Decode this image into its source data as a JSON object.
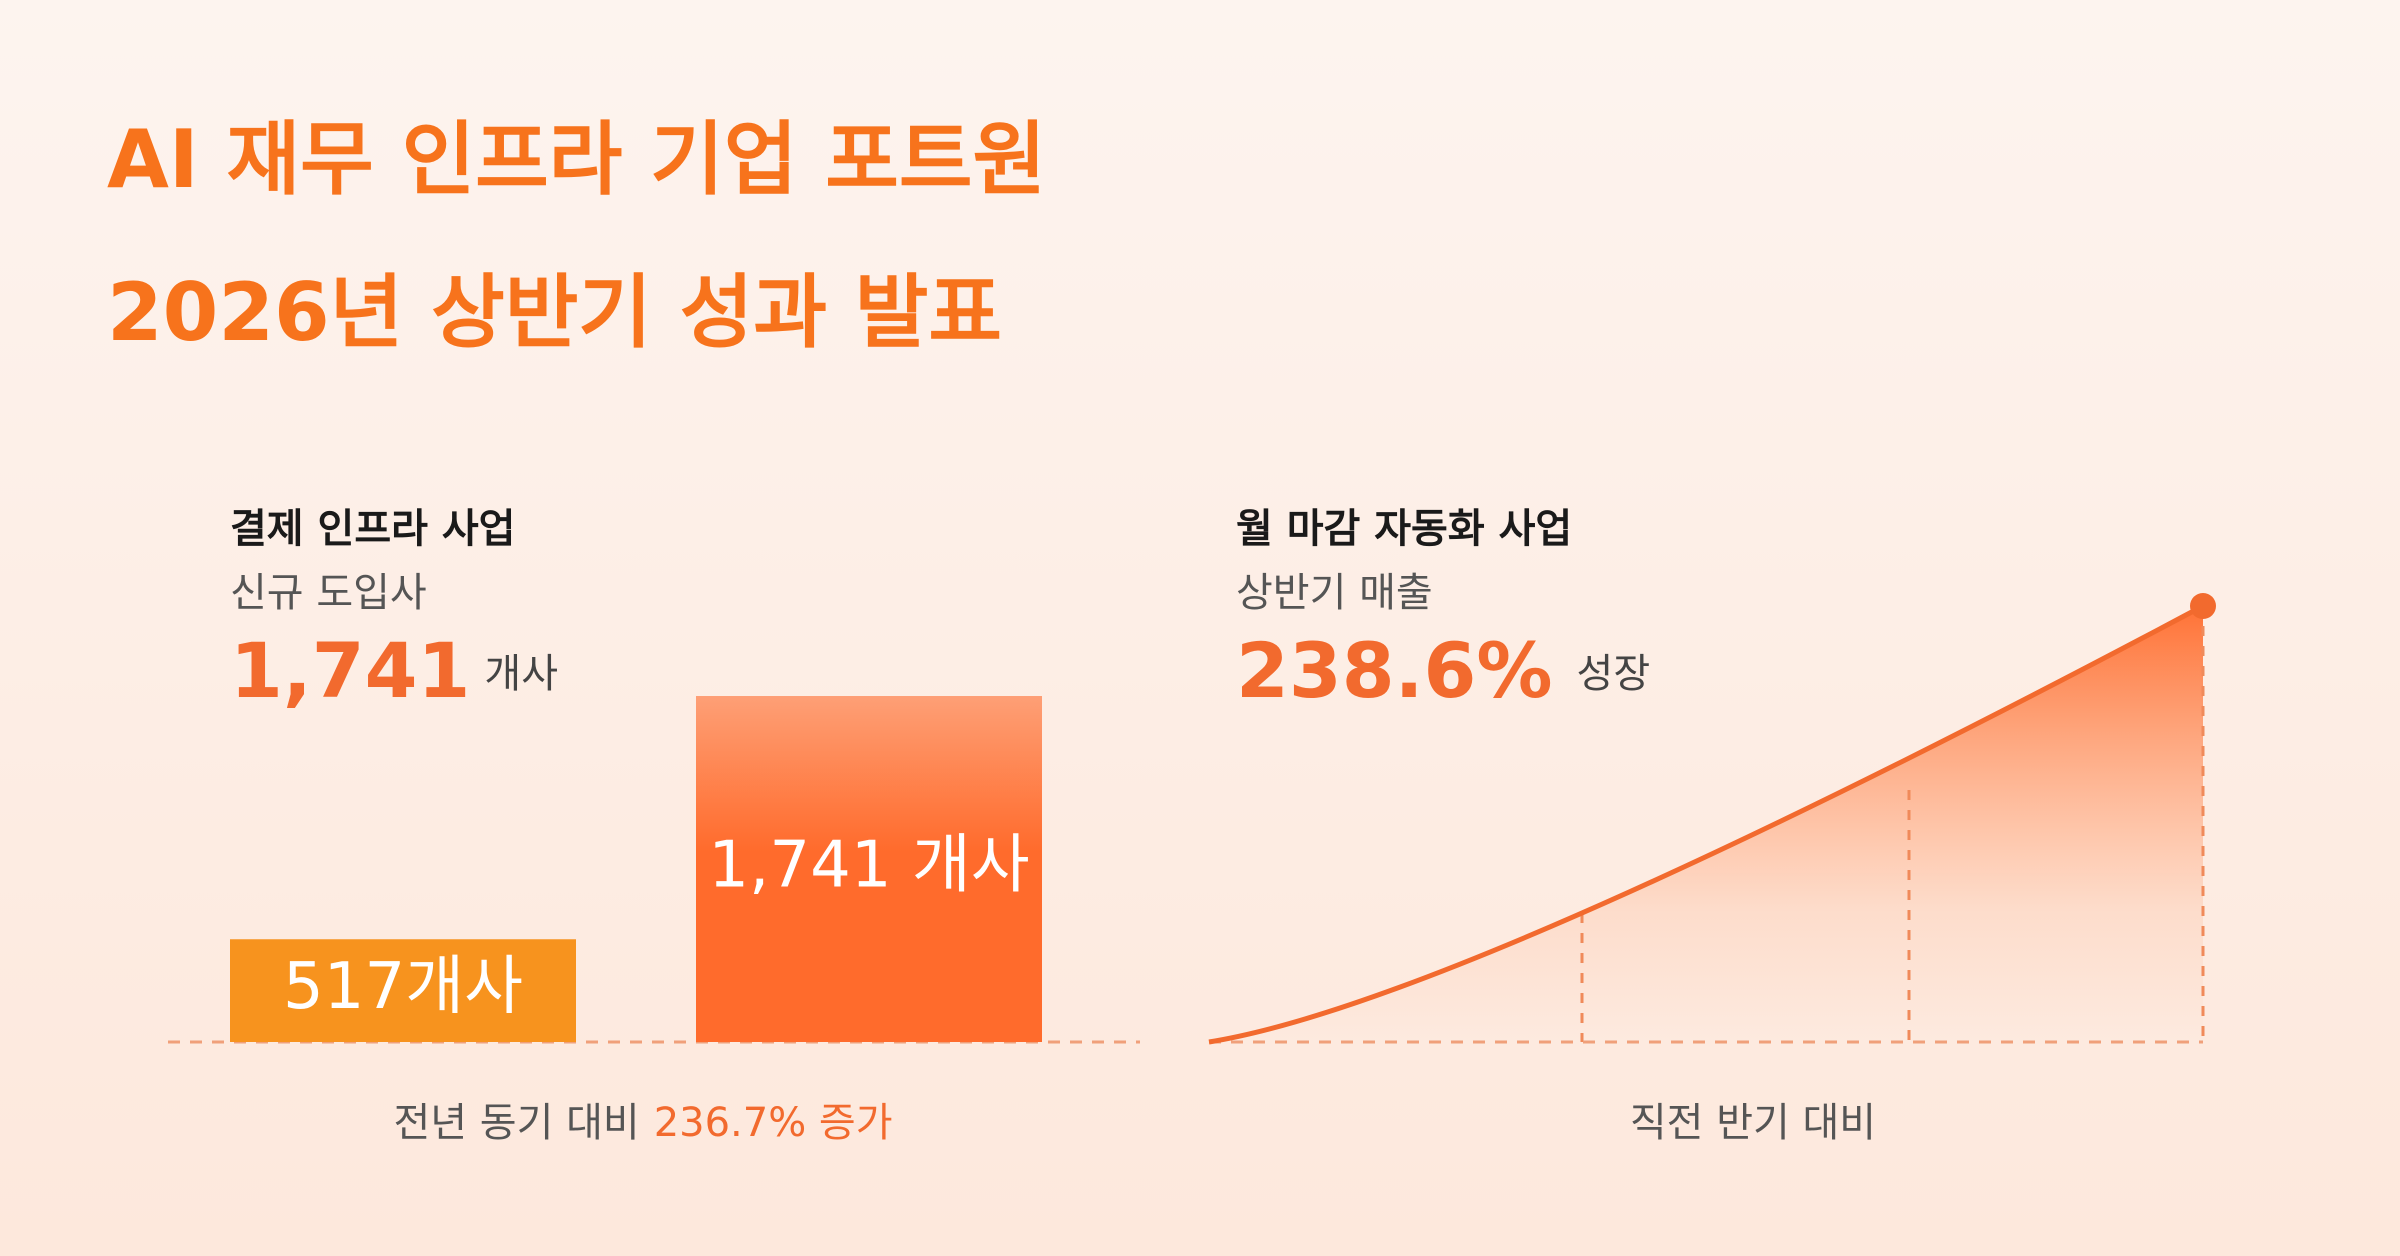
{
  "header": {
    "title_lines": [
      "AI 재무 인프라 기업 포트원",
      "2026년 상반기 성과 발표"
    ]
  },
  "chart_data": {
    "type": "bar",
    "title": "결제 인프라 사업",
    "subtitle": "신규 도입사",
    "headline": "1,741",
    "headline_unit": "개사",
    "values": [
      517,
      1741
    ],
    "value_labels": [
      "517개사",
      "1,741 개사"
    ],
    "colors": [
      "#f7931e",
      "#ff6b2c"
    ],
    "footnote": "전년 동기 대비",
    "footnote_highlight": "236.7% 증가"
  },
  "growth_panel": {
    "title": "월 마감 자동화 사업",
    "subtitle": "상반기 매출",
    "headline": "238.6%",
    "headline_unit": "성장",
    "footnote": "직전 반기 대비"
  }
}
